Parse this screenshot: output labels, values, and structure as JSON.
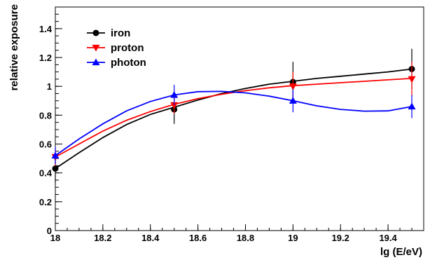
{
  "chart_data": {
    "type": "line",
    "title": "",
    "xlabel": "lg (E/eV)",
    "ylabel": "relative exposure",
    "xlim": [
      18.0,
      19.55
    ],
    "ylim": [
      0,
      1.55
    ],
    "xticks": [
      {
        "v": 18.0,
        "label": "18"
      },
      {
        "v": 18.2,
        "label": "18.2"
      },
      {
        "v": 18.4,
        "label": "18.4"
      },
      {
        "v": 18.6,
        "label": "18.6"
      },
      {
        "v": 18.8,
        "label": "18.8"
      },
      {
        "v": 19.0,
        "label": "19"
      },
      {
        "v": 19.2,
        "label": "19.2"
      },
      {
        "v": 19.4,
        "label": "19.4"
      }
    ],
    "yticks": [
      {
        "v": 0,
        "label": "0"
      },
      {
        "v": 0.2,
        "label": "0.2"
      },
      {
        "v": 0.4,
        "label": "0.4"
      },
      {
        "v": 0.6,
        "label": "0.6"
      },
      {
        "v": 0.8,
        "label": "0.8"
      },
      {
        "v": 1.0,
        "label": "1"
      },
      {
        "v": 1.2,
        "label": "1.2"
      },
      {
        "v": 1.4,
        "label": "1.4"
      }
    ],
    "legend_position": "top-left",
    "series": [
      {
        "name": "iron",
        "color": "#000000",
        "marker": "circle",
        "x": [
          18.0,
          18.5,
          19.0,
          19.5
        ],
        "y": [
          0.43,
          0.84,
          1.03,
          1.12
        ],
        "err": [
          0.1,
          0.1,
          0.14,
          0.14
        ],
        "curve": [
          [
            18.0,
            0.43
          ],
          [
            18.1,
            0.54
          ],
          [
            18.2,
            0.645
          ],
          [
            18.3,
            0.735
          ],
          [
            18.4,
            0.805
          ],
          [
            18.5,
            0.855
          ],
          [
            18.6,
            0.905
          ],
          [
            18.7,
            0.95
          ],
          [
            18.8,
            0.985
          ],
          [
            18.9,
            1.015
          ],
          [
            19.0,
            1.035
          ],
          [
            19.1,
            1.055
          ],
          [
            19.2,
            1.07
          ],
          [
            19.3,
            1.085
          ],
          [
            19.4,
            1.1
          ],
          [
            19.5,
            1.12
          ]
        ]
      },
      {
        "name": "proton",
        "color": "#ff0000",
        "marker": "triangle-down",
        "x": [
          18.0,
          18.5,
          19.0,
          19.5
        ],
        "y": [
          0.51,
          0.87,
          1.0,
          1.05
        ],
        "err": [
          0.06,
          0.06,
          0.1,
          0.12
        ],
        "curve": [
          [
            18.0,
            0.51
          ],
          [
            18.1,
            0.6
          ],
          [
            18.2,
            0.69
          ],
          [
            18.3,
            0.765
          ],
          [
            18.4,
            0.825
          ],
          [
            18.5,
            0.875
          ],
          [
            18.6,
            0.915
          ],
          [
            18.7,
            0.945
          ],
          [
            18.8,
            0.97
          ],
          [
            18.9,
            0.99
          ],
          [
            19.0,
            1.005
          ],
          [
            19.1,
            1.015
          ],
          [
            19.2,
            1.025
          ],
          [
            19.3,
            1.035
          ],
          [
            19.4,
            1.045
          ],
          [
            19.5,
            1.055
          ]
        ]
      },
      {
        "name": "photon",
        "color": "#0000ff",
        "marker": "triangle-up",
        "x": [
          18.0,
          18.5,
          19.0,
          19.5
        ],
        "y": [
          0.52,
          0.94,
          0.9,
          0.86
        ],
        "err": [
          0.06,
          0.07,
          0.08,
          0.08
        ],
        "curve": [
          [
            18.0,
            0.52
          ],
          [
            18.1,
            0.635
          ],
          [
            18.2,
            0.74
          ],
          [
            18.3,
            0.83
          ],
          [
            18.4,
            0.895
          ],
          [
            18.5,
            0.94
          ],
          [
            18.6,
            0.963
          ],
          [
            18.7,
            0.965
          ],
          [
            18.8,
            0.955
          ],
          [
            18.9,
            0.932
          ],
          [
            19.0,
            0.9
          ],
          [
            19.1,
            0.865
          ],
          [
            19.2,
            0.84
          ],
          [
            19.3,
            0.828
          ],
          [
            19.4,
            0.83
          ],
          [
            19.5,
            0.86
          ]
        ]
      }
    ]
  }
}
